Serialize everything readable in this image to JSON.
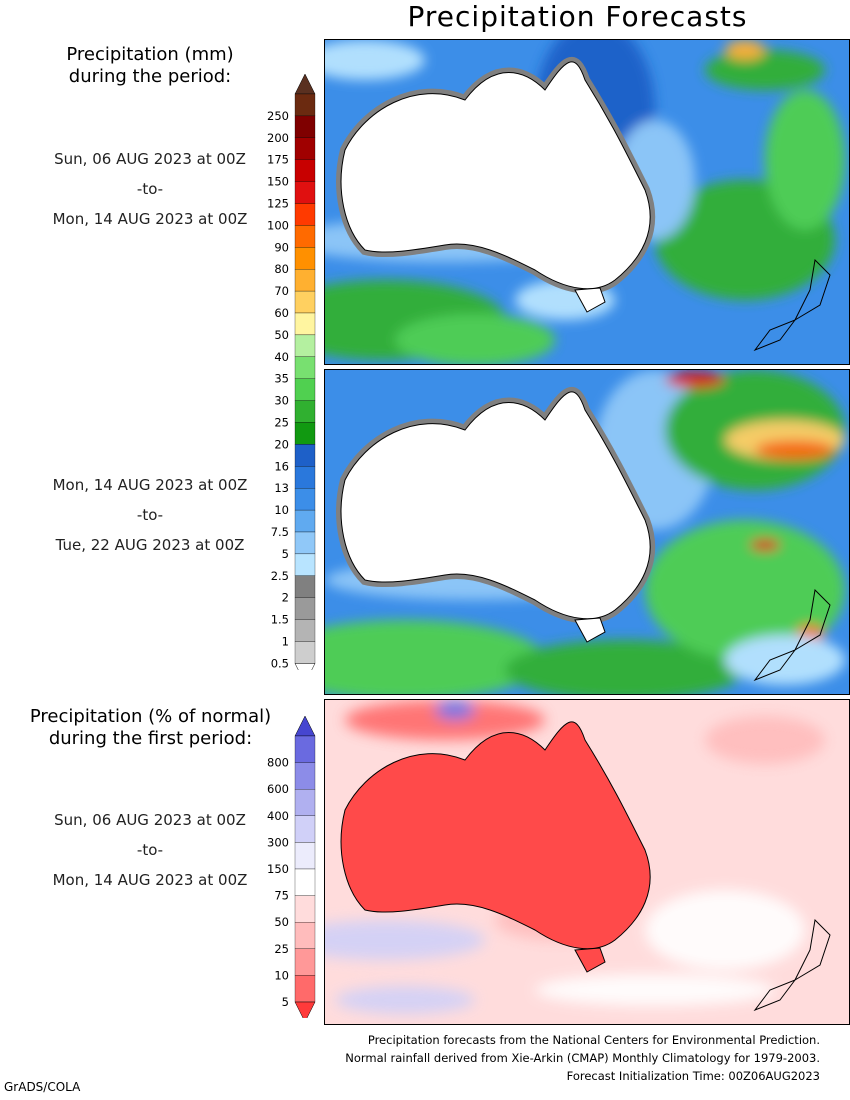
{
  "title": "Precipitation Forecasts",
  "precip_legend": {
    "heading_line1": "Precipitation (mm)",
    "heading_line2": "during the period:",
    "ticks": [
      "250",
      "200",
      "175",
      "150",
      "125",
      "100",
      "90",
      "80",
      "70",
      "60",
      "50",
      "40",
      "35",
      "30",
      "25",
      "20",
      "16",
      "13",
      "10",
      "7.5",
      "5",
      "2.5",
      "2",
      "1.5",
      "1",
      "0.5"
    ],
    "colors": [
      "#6b2a10",
      "#7f0000",
      "#a00000",
      "#c80000",
      "#e01010",
      "#ff3a00",
      "#ff6a00",
      "#ff9000",
      "#ffb030",
      "#ffd060",
      "#fff5a0",
      "#b4f0a0",
      "#78e070",
      "#50d050",
      "#30b030",
      "#119911",
      "#1e60c8",
      "#2a78dc",
      "#3c8ee8",
      "#60aaf0",
      "#90c8f8",
      "#b8e4ff",
      "#808080",
      "#9a9a9a",
      "#b4b4b4",
      "#cecece"
    ],
    "top_color": "#5a3020"
  },
  "period1": {
    "start": "Sun, 06 AUG 2023 at 00Z",
    "sep": "-to-",
    "end": "Mon, 14 AUG 2023 at 00Z"
  },
  "period2": {
    "start": "Mon, 14 AUG 2023 at 00Z",
    "sep": "-to-",
    "end": "Tue, 22 AUG 2023 at 00Z"
  },
  "anomaly_legend": {
    "heading_line1": "Precipitation (% of normal)",
    "heading_line2": "during the first period:",
    "ticks": [
      "800",
      "600",
      "400",
      "300",
      "150",
      "75",
      "50",
      "25",
      "10",
      "5"
    ],
    "colors": [
      "#6a6ae0",
      "#8c8ce8",
      "#b0b0f0",
      "#d0d0f8",
      "#ececfc",
      "#ffffff",
      "#ffdcdc",
      "#ffbcbc",
      "#ff9898",
      "#ff6a6a"
    ],
    "top_color": "#4646d0",
    "bottom_color": "#ff3a3a"
  },
  "period3": {
    "start": "Sun, 06 AUG 2023 at 00Z",
    "sep": "-to-",
    "end": "Mon, 14 AUG 2023 at 00Z"
  },
  "footer": {
    "line1": "Precipitation forecasts from the National Centers for Environmental Prediction.",
    "line2": "Normal rainfall derived from Xie-Arkin (CMAP) Monthly Climatology for 1979-2003.",
    "line3": "Forecast Initialization Time: 00Z06AUG2023"
  },
  "credit": "GrADS/COLA"
}
